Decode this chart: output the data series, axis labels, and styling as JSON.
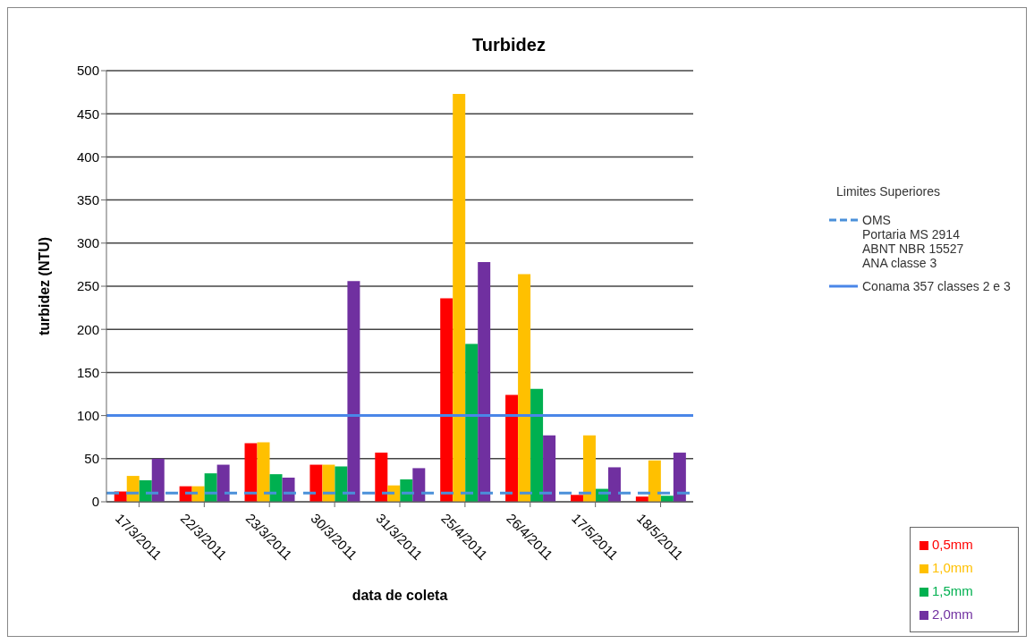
{
  "chart_data": {
    "type": "bar",
    "title": "Turbidez",
    "xlabel": "data de coleta",
    "ylabel": "turbidez (NTU)",
    "categories": [
      "17/3/2011",
      "22/3/2011",
      "23/3/2011",
      "30/3/2011",
      "31/3/2011",
      "25/4/2011",
      "26/4/2011",
      "17/5/2011",
      "18/5/2011"
    ],
    "series": [
      {
        "name": "0,5mm",
        "color": "#ff0000",
        "values": [
          12,
          18,
          68,
          43,
          57,
          236,
          124,
          8,
          6
        ]
      },
      {
        "name": "1,0mm",
        "color": "#ffc000",
        "values": [
          30,
          18,
          69,
          43,
          19,
          473,
          264,
          77,
          48
        ]
      },
      {
        "name": "1,5mm",
        "color": "#00b050",
        "values": [
          25,
          33,
          32,
          41,
          26,
          183,
          131,
          15,
          7
        ]
      },
      {
        "name": "2,0mm",
        "color": "#7030a0",
        "values": [
          50,
          43,
          28,
          256,
          39,
          278,
          77,
          40,
          57
        ]
      }
    ],
    "ylim": [
      0,
      500
    ],
    "yticks": [
      0,
      50,
      100,
      150,
      200,
      250,
      300,
      350,
      400,
      450,
      500
    ],
    "grid": "y",
    "legend": "bottom right",
    "ref_lines": [
      {
        "axis": "y",
        "value": 10,
        "label": "OMS\nPortaria MS 2914\nABNT NBR 15527\nANA classe 3",
        "color": "#4a90d9",
        "line_style": "dashed"
      },
      {
        "axis": "y",
        "value": 100,
        "label": "Conama 357 classes 2 e 3",
        "color": "#4a86e8",
        "line_style": "solid"
      }
    ],
    "annotations": [
      "Limites Superiores"
    ]
  }
}
